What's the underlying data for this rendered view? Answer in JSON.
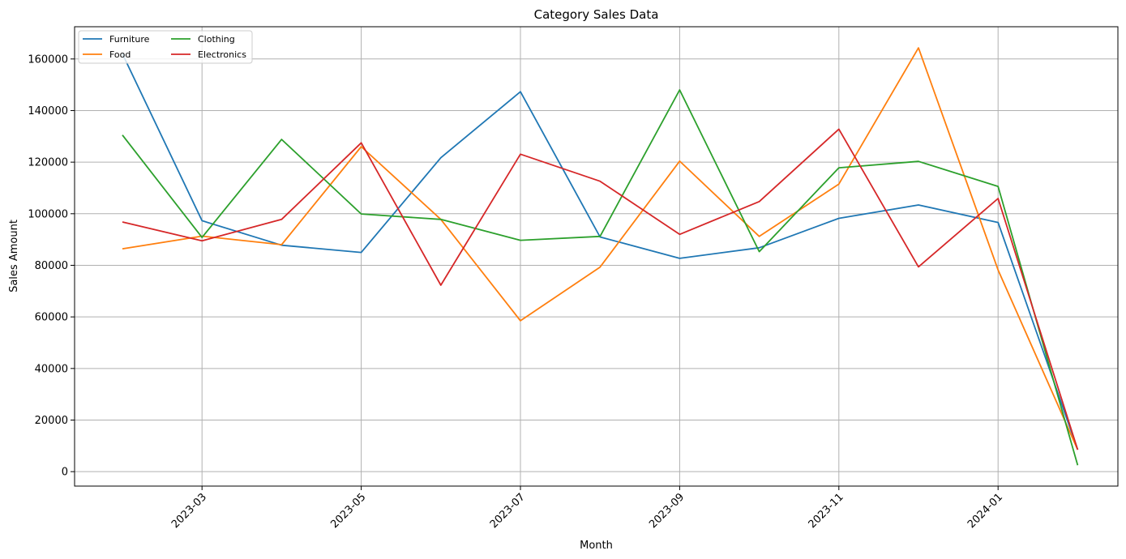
{
  "chart_data": {
    "type": "line",
    "title": "Category Sales Data",
    "xlabel": "Month",
    "ylabel": "Sales Amount",
    "x": [
      "2023-02",
      "2023-03",
      "2023-04",
      "2023-05",
      "2023-06",
      "2023-07",
      "2023-08",
      "2023-09",
      "2023-10",
      "2023-11",
      "2023-12",
      "2024-01",
      "2024-02"
    ],
    "x_tick_labels": [
      "2023-03",
      "2023-05",
      "2023-07",
      "2023-09",
      "2023-11",
      "2024-01"
    ],
    "y_tick_labels": [
      "0",
      "20000",
      "40000",
      "60000",
      "80000",
      "100000",
      "120000",
      "140000",
      "160000"
    ],
    "ylim": [
      -5600,
      172500
    ],
    "grid": true,
    "legend_position": "top-left",
    "series": [
      {
        "name": "Furniture",
        "color": "#1f77b4",
        "values": [
          162000,
          97300,
          87800,
          85000,
          121700,
          147300,
          91000,
          82700,
          86800,
          98200,
          103400,
          96600,
          8500
        ]
      },
      {
        "name": "Food",
        "color": "#ff7f0e",
        "values": [
          86400,
          91300,
          88000,
          126000,
          97800,
          58500,
          79300,
          120400,
          91200,
          111500,
          164300,
          78200,
          8500
        ]
      },
      {
        "name": "Clothing",
        "color": "#2ca02c",
        "values": [
          130500,
          90800,
          128800,
          99900,
          97800,
          89700,
          91200,
          148000,
          85300,
          117800,
          120300,
          110600,
          2500
        ]
      },
      {
        "name": "Electronics",
        "color": "#d62728",
        "values": [
          96800,
          89500,
          97800,
          127500,
          72300,
          123100,
          112600,
          92000,
          104700,
          132800,
          79400,
          105900,
          8500
        ]
      }
    ]
  }
}
